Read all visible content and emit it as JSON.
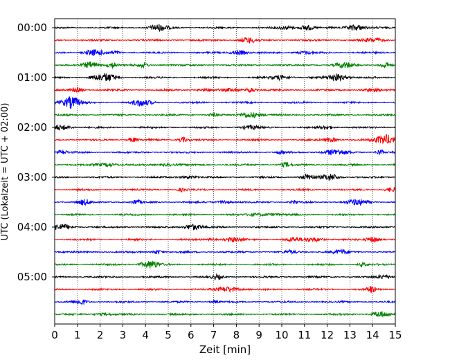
{
  "chart_data": {
    "type": "line",
    "title": "",
    "xlabel": "Zeit  [min]",
    "ylabel": "UTC (Lokalzeit = UTC + 02:00)",
    "xlim": [
      0,
      15
    ],
    "x_ticks": [
      0,
      1,
      2,
      3,
      4,
      5,
      6,
      7,
      8,
      9,
      10,
      11,
      12,
      13,
      14,
      15
    ],
    "y_tick_labels": [
      "00:00",
      "01:00",
      "02:00",
      "03:00",
      "04:00",
      "05:00"
    ],
    "grid": "vertical dotted",
    "trace_minutes": 15,
    "trace_count": 24,
    "trace_colors": [
      "#000000",
      "#ff0000",
      "#0000ff",
      "#008000"
    ],
    "legend": "none"
  }
}
